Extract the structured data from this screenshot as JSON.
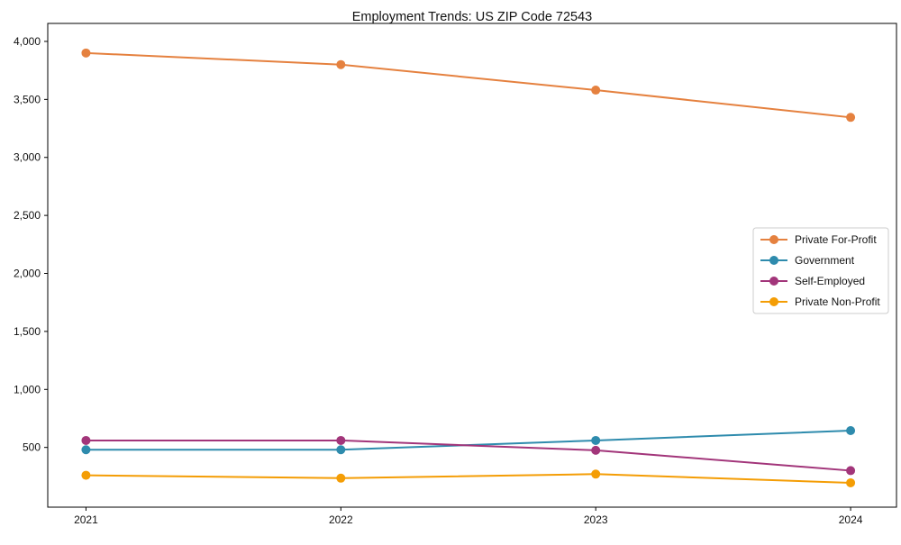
{
  "chart_data": {
    "type": "line",
    "title": "Employment Trends: US ZIP Code 72543",
    "x": [
      2021,
      2022,
      2023,
      2024
    ],
    "series": [
      {
        "name": "Private For-Profit",
        "color": "#e5813f",
        "values": [
          3900,
          3800,
          3580,
          3345
        ]
      },
      {
        "name": "Government",
        "color": "#2e8bad",
        "values": [
          480,
          480,
          560,
          645
        ]
      },
      {
        "name": "Self-Employed",
        "color": "#a2357a",
        "values": [
          560,
          560,
          475,
          300
        ]
      },
      {
        "name": "Private Non-Profit",
        "color": "#f49d05",
        "values": [
          260,
          235,
          270,
          195
        ]
      }
    ],
    "xlabel": "",
    "ylabel": "",
    "xticks": [
      2021,
      2022,
      2023,
      2024
    ],
    "xtick_labels": [
      "2021",
      "2022",
      "2023",
      "2024"
    ],
    "yticks": [
      500,
      1000,
      1500,
      2000,
      2500,
      3000,
      3500,
      4000
    ],
    "ytick_labels": [
      "500",
      "1,000",
      "1,500",
      "2,000",
      "2,500",
      "3,000",
      "3,500",
      "4,000"
    ],
    "xlim": [
      2020.85,
      2024.18
    ],
    "ylim": [
      -15,
      4155
    ],
    "grid": false,
    "legend_position": "center-right",
    "frame_color": "#000000",
    "legend_border_color": "#cccccc",
    "legend_background": "#ffffff"
  }
}
